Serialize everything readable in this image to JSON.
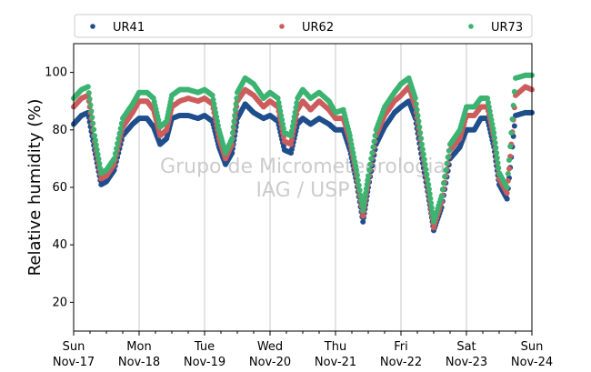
{
  "watermark": [
    "Grupo de Micrometeorologia",
    "IAG / USP"
  ],
  "chart_data": {
    "type": "scatter",
    "title": "",
    "xlabel": "",
    "ylabel": "Relative humidity (%)",
    "ylim": [
      10,
      110
    ],
    "yticks": [
      20,
      40,
      60,
      80,
      100
    ],
    "grid": "vertical gridlines at day boundaries",
    "legend_position": "top",
    "x_range": [
      "Nov-17 00:00",
      "Nov-24 00:00"
    ],
    "x_ticks": [
      {
        "day": 0,
        "line1": "Sun",
        "line2": "Nov-17"
      },
      {
        "day": 1,
        "line1": "Mon",
        "line2": "Nov-18"
      },
      {
        "day": 2,
        "line1": "Tue",
        "line2": "Nov-19"
      },
      {
        "day": 3,
        "line1": "Wed",
        "line2": "Nov-20"
      },
      {
        "day": 4,
        "line1": "Thu",
        "line2": "Nov-21"
      },
      {
        "day": 5,
        "line1": "Fri",
        "line2": "Nov-22"
      },
      {
        "day": 6,
        "line1": "Sat",
        "line2": "Nov-23"
      },
      {
        "day": 7,
        "line1": "Sun",
        "line2": "Nov-24"
      }
    ],
    "x_day_values": [
      0.0,
      0.12,
      0.22,
      0.32,
      0.42,
      0.5,
      0.62,
      0.75,
      0.9,
      1.0,
      1.12,
      1.22,
      1.32,
      1.42,
      1.5,
      1.62,
      1.75,
      1.9,
      2.0,
      2.12,
      2.22,
      2.32,
      2.42,
      2.5,
      2.62,
      2.75,
      2.9,
      3.0,
      3.12,
      3.22,
      3.32,
      3.42,
      3.5,
      3.62,
      3.75,
      3.9,
      4.0,
      4.12,
      4.22,
      4.32,
      4.42,
      4.5,
      4.62,
      4.75,
      4.9,
      5.0,
      5.12,
      5.22,
      5.32,
      5.42,
      5.5,
      5.62,
      5.75,
      5.9,
      6.0,
      6.12,
      6.22,
      6.32,
      6.42,
      6.5,
      6.62,
      6.75,
      6.9,
      7.0
    ],
    "series": [
      {
        "name": "UR41",
        "color": "#1f4e8c",
        "values": [
          82,
          85,
          86,
          73,
          61,
          62,
          66,
          78,
          82,
          84,
          84,
          81,
          75,
          77,
          84,
          85,
          85,
          84,
          85,
          83,
          74,
          68,
          72,
          84,
          89,
          86,
          84,
          85,
          83,
          73,
          72,
          82,
          84,
          82,
          84,
          82,
          80,
          80,
          73,
          62,
          48,
          60,
          75,
          81,
          86,
          88,
          90,
          84,
          70,
          57,
          45,
          53,
          70,
          74,
          80,
          80,
          84,
          84,
          74,
          61,
          56,
          85,
          86,
          86
        ]
      },
      {
        "name": "UR62",
        "color": "#cd5c5c",
        "values": [
          88,
          91,
          92,
          76,
          63,
          64,
          68,
          81,
          86,
          90,
          90,
          87,
          78,
          80,
          88,
          90,
          91,
          90,
          91,
          89,
          77,
          70,
          75,
          90,
          94,
          92,
          88,
          90,
          88,
          76,
          75,
          87,
          90,
          87,
          90,
          87,
          84,
          84,
          76,
          64,
          50,
          62,
          78,
          85,
          90,
          92,
          95,
          88,
          73,
          59,
          46,
          55,
          73,
          77,
          85,
          85,
          88,
          88,
          77,
          63,
          58,
          92,
          95,
          94
        ]
      },
      {
        "name": "UR73",
        "color": "#3cb371",
        "values": [
          91,
          94,
          95,
          78,
          65,
          66,
          70,
          84,
          89,
          93,
          93,
          91,
          81,
          83,
          92,
          94,
          94,
          93,
          94,
          92,
          80,
          72,
          77,
          93,
          98,
          96,
          91,
          93,
          91,
          79,
          78,
          91,
          94,
          91,
          93,
          90,
          86,
          87,
          78,
          66,
          52,
          64,
          80,
          88,
          93,
          96,
          98,
          91,
          75,
          61,
          48,
          57,
          75,
          80,
          88,
          88,
          91,
          91,
          79,
          65,
          60,
          98,
          99,
          99
        ]
      }
    ]
  }
}
